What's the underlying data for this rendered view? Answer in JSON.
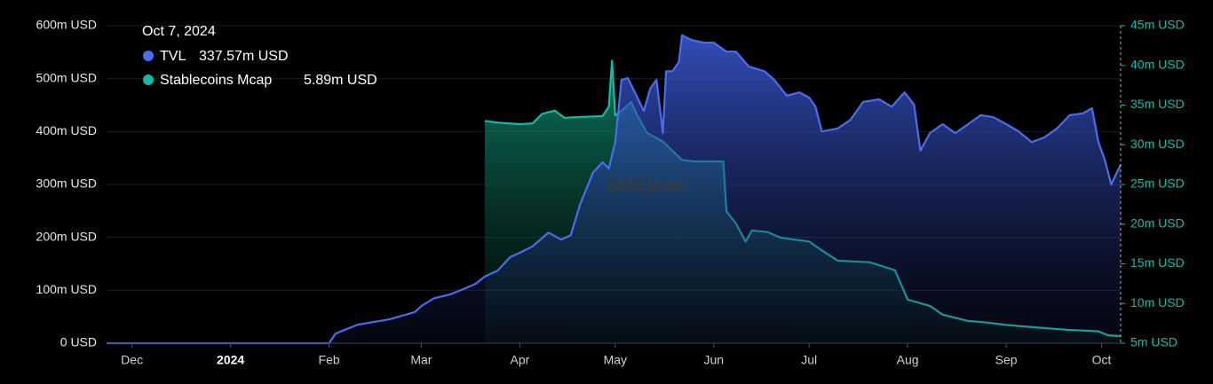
{
  "chart_data": {
    "type": "area",
    "watermark": "DefiLlama",
    "tooltip": {
      "date": "Oct 7, 2024",
      "items": [
        {
          "label": "TVL",
          "value": "337.57m USD"
        },
        {
          "label": "Stablecoins Mcap",
          "value": "5.89m USD"
        }
      ]
    },
    "xlim": [
      "2023-11-23",
      "2024-10-07"
    ],
    "xticks": [
      {
        "value": "2023-12-01",
        "label": "Dec"
      },
      {
        "value": "2024-01-01",
        "label": "2024"
      },
      {
        "value": "2024-02-01",
        "label": "Feb"
      },
      {
        "value": "2024-03-01",
        "label": "Mar"
      },
      {
        "value": "2024-04-01",
        "label": "Apr"
      },
      {
        "value": "2024-05-01",
        "label": "May"
      },
      {
        "value": "2024-06-01",
        "label": "Jun"
      },
      {
        "value": "2024-07-01",
        "label": "Jul"
      },
      {
        "value": "2024-08-01",
        "label": "Aug"
      },
      {
        "value": "2024-09-01",
        "label": "Sep"
      },
      {
        "value": "2024-10-01",
        "label": "Oct"
      }
    ],
    "ylim": [
      0,
      600
    ],
    "yticks": [
      {
        "value": 0,
        "label": "0 USD"
      },
      {
        "value": 100,
        "label": "100m USD"
      },
      {
        "value": 200,
        "label": "200m USD"
      },
      {
        "value": 300,
        "label": "300m USD"
      },
      {
        "value": 400,
        "label": "400m USD"
      },
      {
        "value": 500,
        "label": "500m USD"
      },
      {
        "value": 600,
        "label": "600m USD"
      }
    ],
    "y2lim": [
      5,
      45
    ],
    "y2ticks": [
      {
        "value": 5,
        "label": "5m USD"
      },
      {
        "value": 10,
        "label": "10m USD"
      },
      {
        "value": 15,
        "label": "15m USD"
      },
      {
        "value": 20,
        "label": "20m USD"
      },
      {
        "value": 25,
        "label": "25m USD"
      },
      {
        "value": 30,
        "label": "30m USD"
      },
      {
        "value": 35,
        "label": "35m USD"
      },
      {
        "value": 40,
        "label": "40m USD"
      },
      {
        "value": 45,
        "label": "45m USD"
      }
    ],
    "grid": true,
    "series": [
      {
        "name": "Stablecoins Mcap",
        "color": "#14b8a6",
        "axis": "y2",
        "x": [
          "2024-03-21",
          "2024-03-25",
          "2024-04-01",
          "2024-04-05",
          "2024-04-08",
          "2024-04-12",
          "2024-04-15",
          "2024-04-20",
          "2024-04-27",
          "2024-04-29",
          "2024-04-30",
          "2024-05-01",
          "2024-05-03",
          "2024-05-06",
          "2024-05-08",
          "2024-05-11",
          "2024-05-16",
          "2024-05-22",
          "2024-05-26",
          "2024-06-04",
          "2024-06-05",
          "2024-06-08",
          "2024-06-11",
          "2024-06-13",
          "2024-06-18",
          "2024-06-22",
          "2024-07-01",
          "2024-07-05",
          "2024-07-10",
          "2024-07-20",
          "2024-07-28",
          "2024-08-01",
          "2024-08-08",
          "2024-08-12",
          "2024-08-20",
          "2024-08-26",
          "2024-09-01",
          "2024-09-10",
          "2024-09-20",
          "2024-09-30",
          "2024-10-03",
          "2024-10-07"
        ],
        "values": [
          33.0,
          32.8,
          32.6,
          32.7,
          33.9,
          34.3,
          33.4,
          33.5,
          33.6,
          34.8,
          40.6,
          33.7,
          34.3,
          35.4,
          33.7,
          31.5,
          30.4,
          28.1,
          27.9,
          27.9,
          21.6,
          20.1,
          17.8,
          19.2,
          19.0,
          18.3,
          17.8,
          16.7,
          15.4,
          15.2,
          14.2,
          10.5,
          9.7,
          8.6,
          7.8,
          7.6,
          7.3,
          7.0,
          6.7,
          6.5,
          6.0,
          5.89
        ]
      },
      {
        "name": "TVL",
        "color": "#4a6cf0",
        "axis": "y",
        "x": [
          "2023-11-23",
          "2024-02-01",
          "2024-02-03",
          "2024-02-05",
          "2024-02-10",
          "2024-02-20",
          "2024-02-28",
          "2024-03-01",
          "2024-03-05",
          "2024-03-10",
          "2024-03-15",
          "2024-03-18",
          "2024-03-21",
          "2024-03-25",
          "2024-03-29",
          "2024-04-01",
          "2024-04-05",
          "2024-04-10",
          "2024-04-14",
          "2024-04-17",
          "2024-04-20",
          "2024-04-24",
          "2024-04-27",
          "2024-04-29",
          "2024-05-01",
          "2024-05-03",
          "2024-05-05",
          "2024-05-08",
          "2024-05-10",
          "2024-05-12",
          "2024-05-14",
          "2024-05-16",
          "2024-05-17",
          "2024-05-19",
          "2024-05-21",
          "2024-05-22",
          "2024-05-25",
          "2024-05-29",
          "2024-06-01",
          "2024-06-05",
          "2024-06-08",
          "2024-06-12",
          "2024-06-17",
          "2024-06-20",
          "2024-06-24",
          "2024-06-28",
          "2024-07-01",
          "2024-07-03",
          "2024-07-05",
          "2024-07-10",
          "2024-07-14",
          "2024-07-18",
          "2024-07-23",
          "2024-07-27",
          "2024-07-31",
          "2024-08-03",
          "2024-08-05",
          "2024-08-08",
          "2024-08-12",
          "2024-08-16",
          "2024-08-20",
          "2024-08-24",
          "2024-08-28",
          "2024-09-01",
          "2024-09-05",
          "2024-09-09",
          "2024-09-13",
          "2024-09-17",
          "2024-09-21",
          "2024-09-25",
          "2024-09-28",
          "2024-09-30",
          "2024-10-02",
          "2024-10-04",
          "2024-10-07"
        ],
        "values": [
          0,
          0,
          18,
          23,
          35,
          45,
          59,
          70,
          85,
          92,
          104,
          112,
          126,
          137,
          163,
          171,
          183,
          209,
          196,
          204,
          263,
          322,
          342,
          330,
          380,
          498,
          501,
          464,
          439,
          481,
          498,
          397,
          514,
          514,
          531,
          582,
          573,
          568,
          568,
          551,
          551,
          523,
          514,
          498,
          468,
          474,
          464,
          447,
          400,
          406,
          422,
          456,
          461,
          447,
          474,
          451,
          364,
          397,
          414,
          397,
          414,
          431,
          427,
          414,
          400,
          380,
          389,
          406,
          431,
          434,
          444,
          380,
          347,
          300,
          337.57
        ]
      }
    ]
  }
}
